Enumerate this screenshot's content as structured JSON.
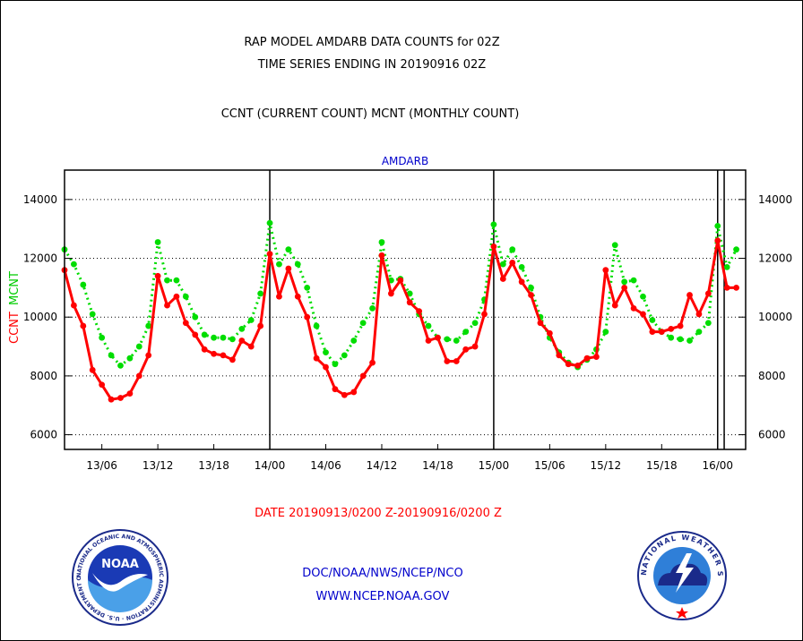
{
  "title_line1": "RAP MODEL AMDARB DATA COUNTS for 02Z",
  "title_line2": "TIME SERIES ENDING IN 20190916 02Z",
  "subtitle": "CCNT (CURRENT COUNT) MCNT (MONTHLY COUNT)",
  "date_range": "DATE 20190913/0200 Z-20190916/0200 Z",
  "footer_line1": "DOC/NOAA/NWS/NCEP/NCO",
  "footer_line2": "WWW.NCEP.NOAA.GOV",
  "logos": {
    "noaa_text": "NOAA",
    "noaa_ring": "NATIONAL OCEANIC AND ATMOSPHERIC ADMINISTRATION · U.S. DEPARTMENT OF COMMERCE",
    "nws_ring": "NATIONAL WEATHER SERVICE"
  },
  "colors": {
    "ccnt": "#ff0000",
    "mcnt": "#00dd00",
    "header": "#0000cc",
    "date": "#ff0000",
    "footer": "#0000cc"
  },
  "chart_data": {
    "type": "line",
    "title": "AMDARB",
    "ylabel_ccnt": "CCNT",
    "ylabel_mcnt": "MCNT",
    "ylim": [
      5500,
      15000
    ],
    "yticks": [
      6000,
      8000,
      10000,
      12000,
      14000
    ],
    "xlim": [
      0,
      73
    ],
    "xticks": [
      {
        "x": 4,
        "label": "13/06"
      },
      {
        "x": 10,
        "label": "13/12"
      },
      {
        "x": 16,
        "label": "13/18"
      },
      {
        "x": 22,
        "label": "14/00"
      },
      {
        "x": 28,
        "label": "14/06"
      },
      {
        "x": 34,
        "label": "14/12"
      },
      {
        "x": 40,
        "label": "14/18"
      },
      {
        "x": 46,
        "label": "15/00"
      },
      {
        "x": 52,
        "label": "15/06"
      },
      {
        "x": 58,
        "label": "15/12"
      },
      {
        "x": 64,
        "label": "15/18"
      },
      {
        "x": 70,
        "label": "16/00"
      }
    ],
    "day_lines": [
      22,
      46,
      70,
      70.7
    ],
    "grid": true,
    "series": [
      {
        "name": "CCNT",
        "color": "#ff0000",
        "style": "solid",
        "x": [
          0,
          1,
          2,
          3,
          4,
          5,
          6,
          7,
          8,
          9,
          10,
          11,
          12,
          13,
          14,
          15,
          16,
          17,
          18,
          19,
          20,
          21,
          22,
          23,
          24,
          25,
          26,
          27,
          28,
          29,
          30,
          31,
          32,
          33,
          34,
          35,
          36,
          37,
          38,
          39,
          40,
          41,
          42,
          43,
          44,
          45,
          46,
          47,
          48,
          49,
          50,
          51,
          52,
          53,
          54,
          55,
          56,
          57,
          58,
          59,
          60,
          61,
          62,
          63,
          64,
          65,
          66,
          67,
          68,
          69,
          70,
          71,
          72
        ],
        "values": [
          11600,
          10400,
          9700,
          8200,
          7700,
          7200,
          7250,
          7400,
          8000,
          8700,
          11400,
          10400,
          10700,
          9800,
          9400,
          8900,
          8750,
          8700,
          8550,
          9200,
          9000,
          9700,
          12150,
          10700,
          11650,
          10700,
          10000,
          8600,
          8300,
          7550,
          7350,
          7450,
          8000,
          8450,
          12100,
          10800,
          11250,
          10500,
          10200,
          9200,
          9300,
          8500,
          8500,
          8900,
          9000,
          10100,
          12400,
          11300,
          11850,
          11200,
          10750,
          9800,
          9450,
          8700,
          8400,
          8350,
          8600,
          8650,
          11600,
          10400,
          11000,
          10300,
          10100,
          9500,
          9500,
          9600,
          9700,
          10750,
          10100,
          10800,
          12600,
          11000,
          11000
        ]
      },
      {
        "name": "MCNT",
        "color": "#00dd00",
        "style": "dotted",
        "x": [
          0,
          1,
          2,
          3,
          4,
          5,
          6,
          7,
          8,
          9,
          10,
          11,
          12,
          13,
          14,
          15,
          16,
          17,
          18,
          19,
          20,
          21,
          22,
          23,
          24,
          25,
          26,
          27,
          28,
          29,
          30,
          31,
          32,
          33,
          34,
          35,
          36,
          37,
          38,
          39,
          40,
          41,
          42,
          43,
          44,
          45,
          46,
          47,
          48,
          49,
          50,
          51,
          52,
          53,
          54,
          55,
          56,
          57,
          58,
          59,
          60,
          61,
          62,
          63,
          64,
          65,
          66,
          67,
          68,
          69,
          70,
          71,
          72
        ],
        "values": [
          12300,
          11800,
          11100,
          10100,
          9300,
          8700,
          8350,
          8600,
          9000,
          9700,
          12550,
          11250,
          11250,
          10700,
          10000,
          9400,
          9300,
          9300,
          9250,
          9600,
          9900,
          10800,
          13200,
          11800,
          12300,
          11800,
          11000,
          9700,
          8800,
          8400,
          8700,
          9200,
          9800,
          10300,
          12550,
          11250,
          11300,
          10800,
          10100,
          9700,
          9300,
          9250,
          9200,
          9500,
          9800,
          10600,
          13150,
          11800,
          12300,
          11700,
          11000,
          10000,
          9300,
          8800,
          8450,
          8300,
          8550,
          8900,
          9500,
          12450,
          11200,
          11250,
          10700,
          9900,
          9500,
          9300,
          9250,
          9200,
          9500,
          9800,
          13100,
          11700,
          12300
        ]
      }
    ]
  }
}
